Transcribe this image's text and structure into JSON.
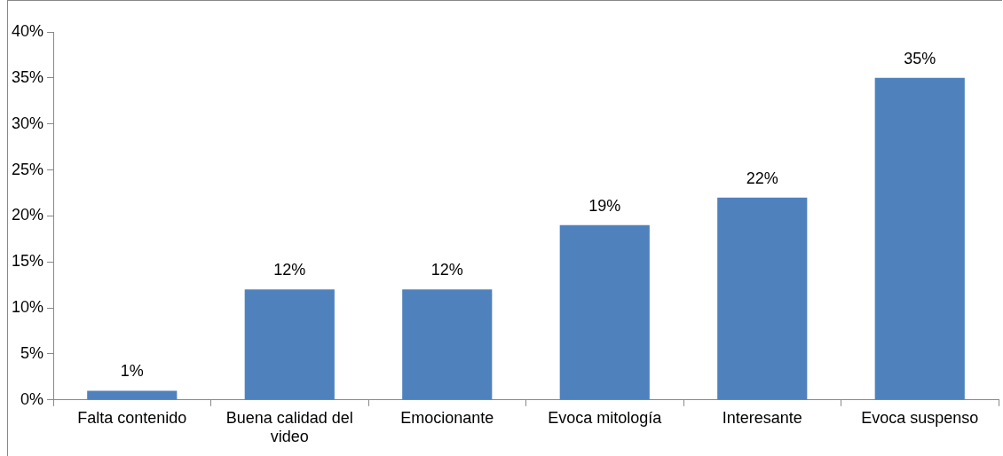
{
  "chart_data": {
    "type": "bar",
    "categories": [
      "Falta contenido",
      "Buena calidad del video",
      "Emocionante",
      "Evoca mitología",
      "Interesante",
      "Evoca suspenso"
    ],
    "values": [
      1,
      12,
      12,
      19,
      22,
      35
    ],
    "value_labels": [
      "1%",
      "12%",
      "12%",
      "19%",
      "22%",
      "35%"
    ],
    "color": "#4f81bd",
    "ylim": [
      0,
      40
    ],
    "yticks": [
      {
        "value": 0,
        "label": "0%"
      },
      {
        "value": 5,
        "label": "5%"
      },
      {
        "value": 10,
        "label": "10%"
      },
      {
        "value": 15,
        "label": "15%"
      },
      {
        "value": 20,
        "label": "20%"
      },
      {
        "value": 25,
        "label": "25%"
      },
      {
        "value": 30,
        "label": "30%"
      },
      {
        "value": 35,
        "label": "35%"
      },
      {
        "value": 40,
        "label": "40%"
      }
    ],
    "grid": false,
    "legend": false
  }
}
